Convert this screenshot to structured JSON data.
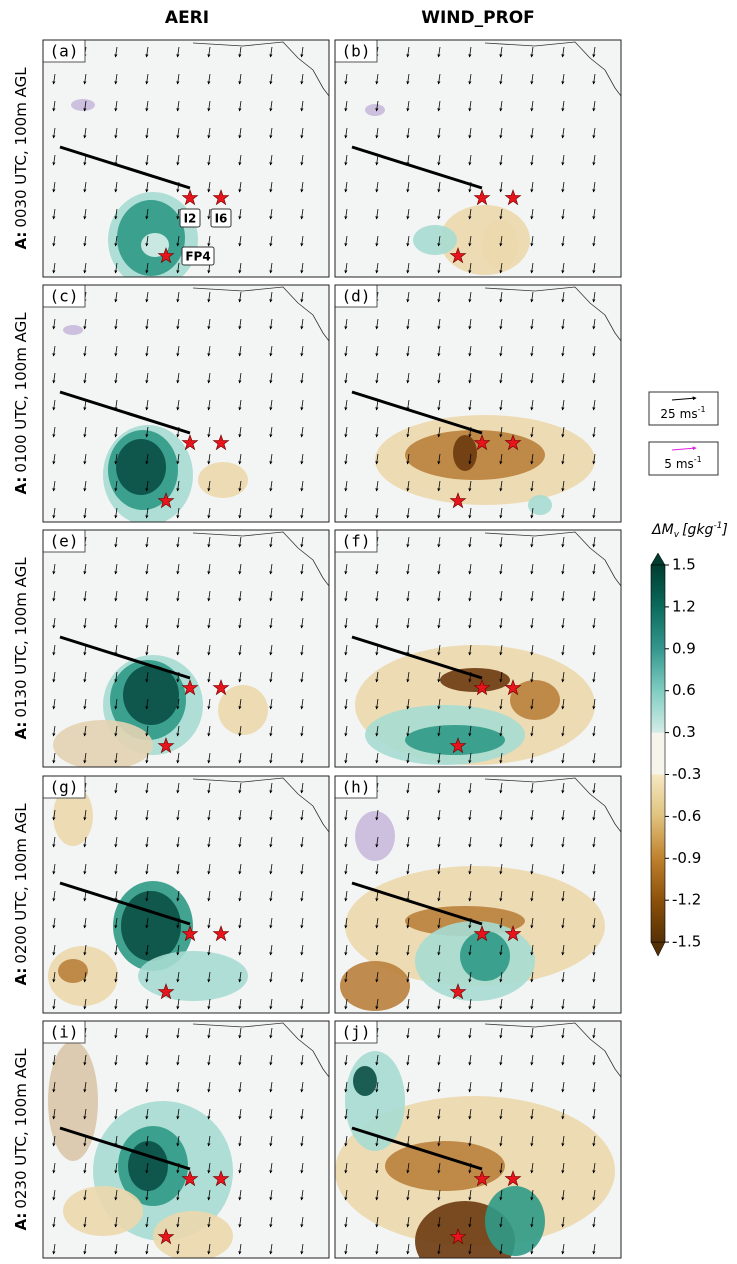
{
  "columns": [
    "AERI",
    "WIND_PROF"
  ],
  "run_label": "A:",
  "rows": [
    "0030 UTC, 100m AGL",
    "0100 UTC, 100m AGL",
    "0130 UTC, 100m AGL",
    "0200 UTC, 100m AGL",
    "0230 UTC, 100m AGL"
  ],
  "panels": [
    "(a)",
    "(b)",
    "(c)",
    "(d)",
    "(e)",
    "(f)",
    "(g)",
    "(h)",
    "(i)",
    "(j)"
  ],
  "stations": [
    "I2",
    "I6",
    "FP4"
  ],
  "legend": {
    "vectors": [
      {
        "value": 25,
        "unit": "ms",
        "sup": "-1",
        "color": "#000000"
      },
      {
        "value": 5,
        "unit": "ms",
        "sup": "-1",
        "color": "#e020e0"
      }
    ]
  },
  "colorbar": {
    "label": "ΔM",
    "label_sub": "v",
    "label_unit": "[gkg",
    "label_sup": "-1",
    "label_end": "]",
    "ticks": [
      1.5,
      1.2,
      0.9,
      0.6,
      0.3,
      -0.3,
      -0.6,
      -0.9,
      -1.2,
      -1.5
    ],
    "colors": [
      "#003c30",
      "#0b6b5c",
      "#35978f",
      "#80cdc1",
      "#d4ece8",
      "#f6e8c3",
      "#dfc27d",
      "#bf812d",
      "#8c510a",
      "#543005"
    ]
  }
}
